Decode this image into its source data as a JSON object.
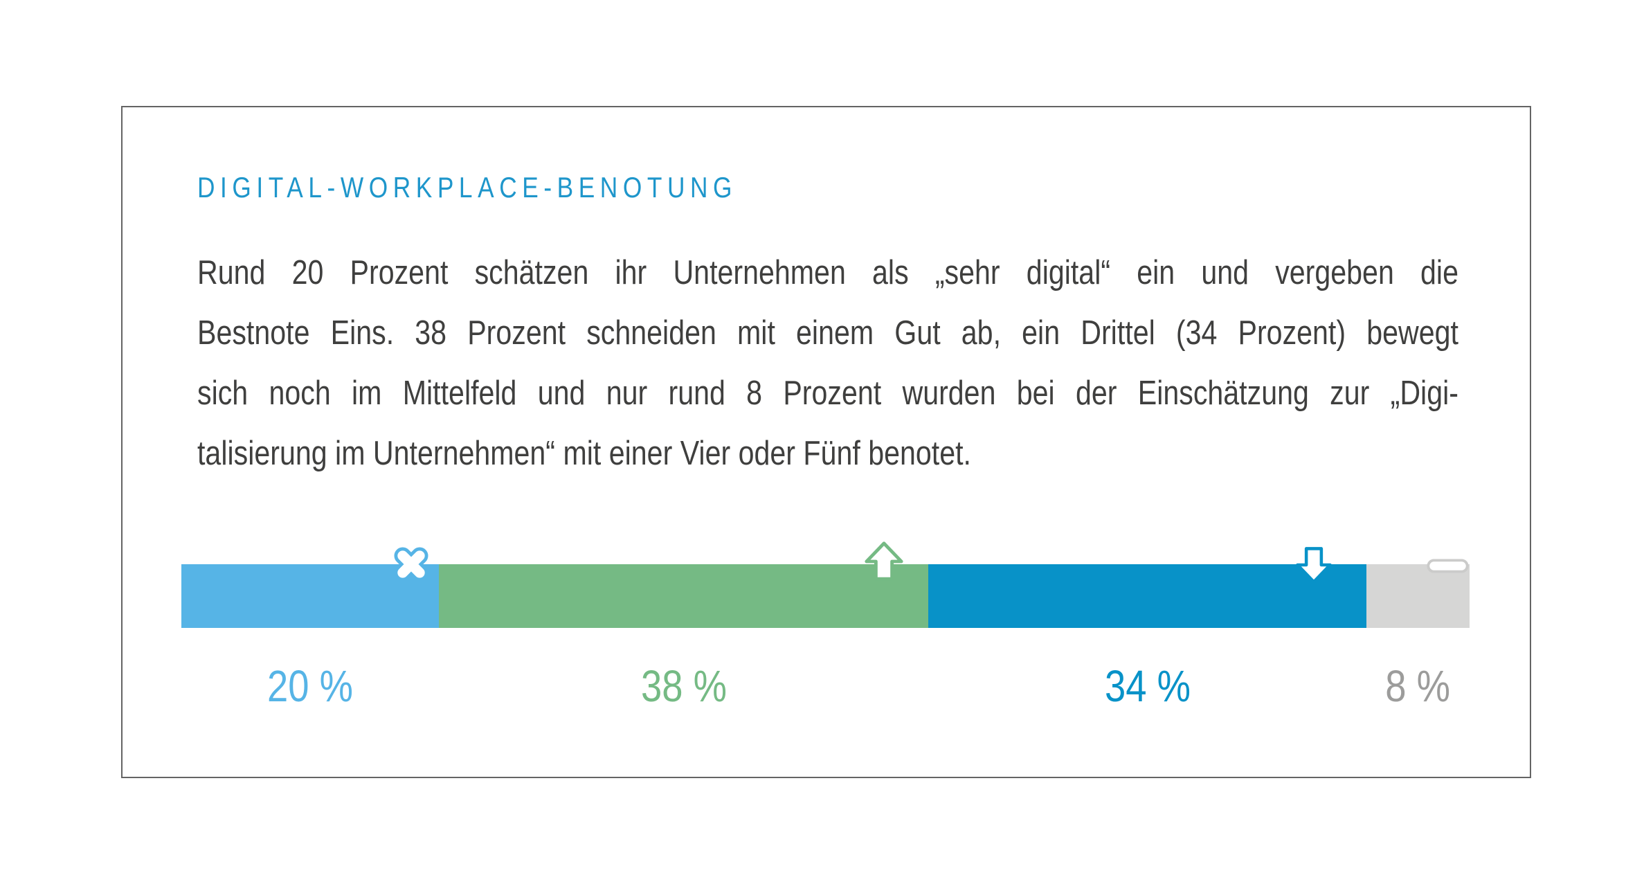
{
  "header": {
    "title": "DIGITAL-WORKPLACE-BENOTUNG",
    "title_color": "#1E96CB"
  },
  "paragraph": {
    "text_color": "#3F3F3E",
    "lines": [
      "Rund 20 Prozent schätzen ihr Unternehmen als „sehr digital“ ein und vergeben die",
      "Bestnote Eins. 38 Prozent schneiden mit einem Gut ab, ein Drittel (34 Prozent) bewegt",
      "sich noch im Mittelfeld und nur rund 8 Prozent wurden bei der Einschätzung zur „Digi-",
      "talisierung im Unternehmen“ mit einer Vier oder Fünf benotet."
    ]
  },
  "chart_data": {
    "type": "bar",
    "variant": "horizontal-stacked-percentage",
    "title": "DIGITAL-WORKPLACE-BENOTUNG",
    "unit": "%",
    "total": 100,
    "grid": false,
    "legend_position": "none",
    "categories": [
      "20 %",
      "38 %",
      "34 %",
      "8 %"
    ],
    "values": [
      20,
      38,
      34,
      8
    ],
    "segments": [
      {
        "label": "20 %",
        "value": 20,
        "color": "#56B4E6",
        "label_color": "#56B4E6",
        "icon": "cross-icon",
        "icon_color": "#56B4E6"
      },
      {
        "label": "38 %",
        "value": 38,
        "color": "#75BA84",
        "label_color": "#75BA84",
        "icon": "arrow-up-icon",
        "icon_color": "#75BA84"
      },
      {
        "label": "34 %",
        "value": 34,
        "color": "#0892C8",
        "label_color": "#0892C8",
        "icon": "arrow-down-icon",
        "icon_color": "#0892C8"
      },
      {
        "label": "8 %",
        "value": 8,
        "color": "#D6D6D5",
        "label_color": "#9C9C9B",
        "icon": "dash-icon",
        "icon_color": "#CBCBCA"
      }
    ]
  }
}
